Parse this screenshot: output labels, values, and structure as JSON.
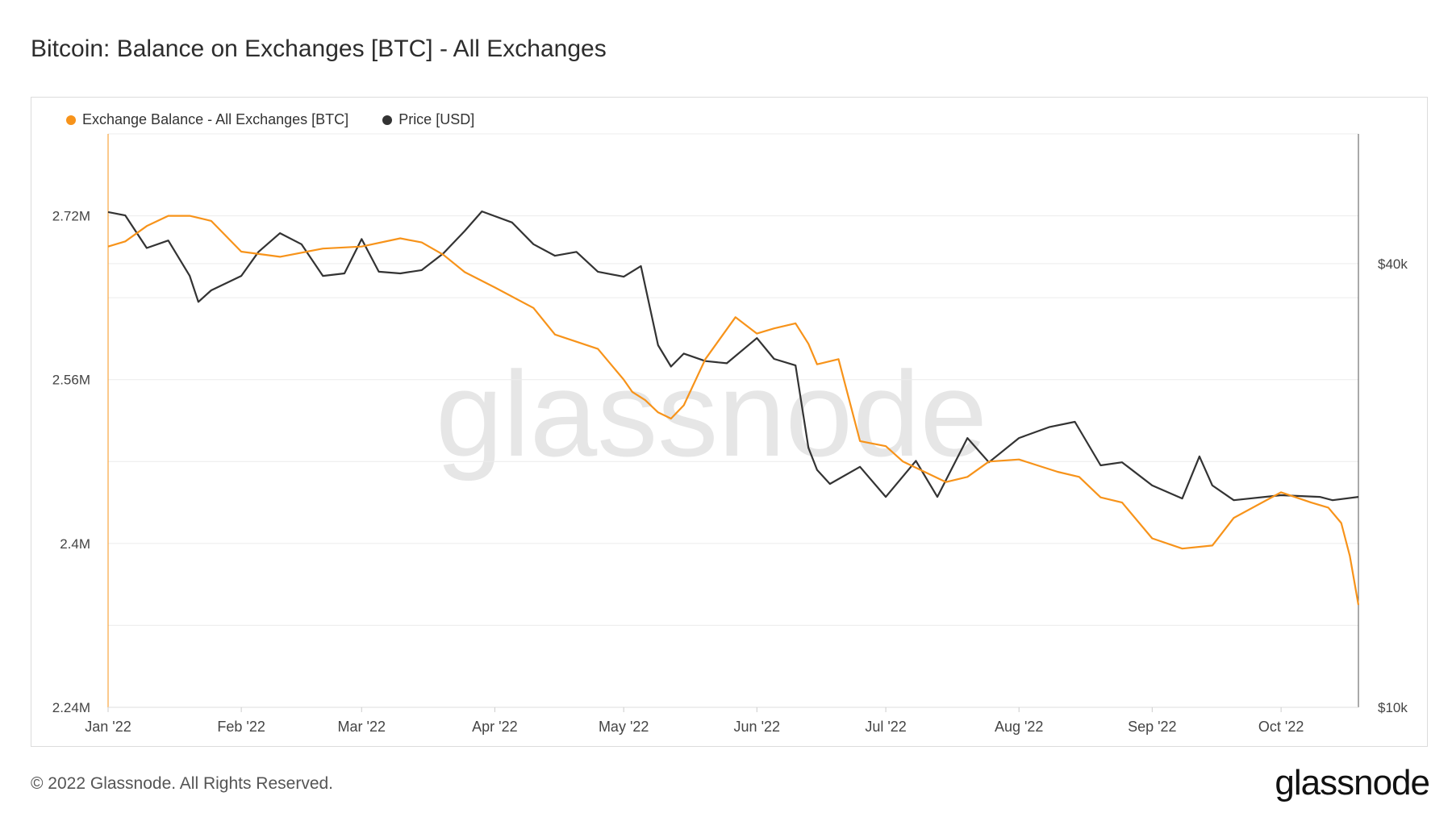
{
  "title": "Bitcoin: Balance on Exchanges [BTC] - All Exchanges",
  "footer": "© 2022 Glassnode. All Rights Reserved.",
  "brand": "glassnode",
  "watermark": "glassnode",
  "legend": [
    {
      "label": "Exchange Balance - All Exchanges [BTC]",
      "color": "#f7931a"
    },
    {
      "label": "Price [USD]",
      "color": "#333333"
    }
  ],
  "chart_data": {
    "type": "line",
    "x_ticks": [
      "Jan '22",
      "Feb '22",
      "Mar '22",
      "Apr '22",
      "May '22",
      "Jun '22",
      "Jul '22",
      "Aug '22",
      "Sep '22",
      "Oct '22"
    ],
    "left_axis": {
      "ticks": [
        "2.24M",
        "2.4M",
        "2.56M",
        "2.72M"
      ],
      "tick_values": [
        2240000,
        2400000,
        2560000,
        2720000
      ],
      "range": [
        2240000,
        2800000
      ]
    },
    "right_axis": {
      "ticks": [
        "$10k",
        "$40k"
      ],
      "tick_values": [
        10000,
        40000
      ],
      "scale": "log",
      "range": [
        10000,
        60000
      ]
    },
    "x_range": [
      "2022-01-01",
      "2022-10-19"
    ],
    "grid": true,
    "series": [
      {
        "name": "Exchange Balance - All Exchanges [BTC]",
        "axis": "left",
        "color": "#f7931a",
        "dates": [
          "2022-01-01",
          "2022-01-05",
          "2022-01-10",
          "2022-01-15",
          "2022-01-20",
          "2022-01-25",
          "2022-02-01",
          "2022-02-10",
          "2022-02-20",
          "2022-03-01",
          "2022-03-10",
          "2022-03-15",
          "2022-03-20",
          "2022-03-25",
          "2022-04-01",
          "2022-04-10",
          "2022-04-15",
          "2022-04-25",
          "2022-05-01",
          "2022-05-03",
          "2022-05-06",
          "2022-05-09",
          "2022-05-12",
          "2022-05-15",
          "2022-05-20",
          "2022-05-27",
          "2022-06-01",
          "2022-06-05",
          "2022-06-10",
          "2022-06-13",
          "2022-06-15",
          "2022-06-20",
          "2022-06-25",
          "2022-07-01",
          "2022-07-05",
          "2022-07-10",
          "2022-07-15",
          "2022-07-20",
          "2022-07-25",
          "2022-08-01",
          "2022-08-10",
          "2022-08-15",
          "2022-08-20",
          "2022-08-25",
          "2022-09-01",
          "2022-09-08",
          "2022-09-15",
          "2022-09-20",
          "2022-10-01",
          "2022-10-08",
          "2022-10-12",
          "2022-10-15",
          "2022-10-17",
          "2022-10-19"
        ],
        "values": [
          2690000,
          2695000,
          2710000,
          2720000,
          2720000,
          2715000,
          2685000,
          2680000,
          2688000,
          2690000,
          2698000,
          2694000,
          2682000,
          2665000,
          2650000,
          2630000,
          2604000,
          2590000,
          2560000,
          2548000,
          2540000,
          2528000,
          2522000,
          2535000,
          2580000,
          2621000,
          2605000,
          2610000,
          2615000,
          2595000,
          2575000,
          2580000,
          2500000,
          2495000,
          2480000,
          2470000,
          2460000,
          2465000,
          2480000,
          2482000,
          2470000,
          2465000,
          2445000,
          2440000,
          2405000,
          2395000,
          2398000,
          2425000,
          2450000,
          2440000,
          2435000,
          2420000,
          2388000,
          2340000
        ]
      },
      {
        "name": "Price [USD]",
        "axis": "right",
        "color": "#333333",
        "dates": [
          "2022-01-01",
          "2022-01-05",
          "2022-01-10",
          "2022-01-15",
          "2022-01-20",
          "2022-01-22",
          "2022-01-25",
          "2022-02-01",
          "2022-02-05",
          "2022-02-10",
          "2022-02-15",
          "2022-02-20",
          "2022-02-25",
          "2022-03-01",
          "2022-03-05",
          "2022-03-10",
          "2022-03-15",
          "2022-03-20",
          "2022-03-25",
          "2022-03-29",
          "2022-04-05",
          "2022-04-10",
          "2022-04-15",
          "2022-04-20",
          "2022-04-25",
          "2022-05-01",
          "2022-05-05",
          "2022-05-09",
          "2022-05-12",
          "2022-05-15",
          "2022-05-20",
          "2022-05-25",
          "2022-06-01",
          "2022-06-05",
          "2022-06-10",
          "2022-06-13",
          "2022-06-15",
          "2022-06-18",
          "2022-06-25",
          "2022-07-01",
          "2022-07-08",
          "2022-07-13",
          "2022-07-20",
          "2022-07-25",
          "2022-08-01",
          "2022-08-08",
          "2022-08-14",
          "2022-08-20",
          "2022-08-25",
          "2022-09-01",
          "2022-09-08",
          "2022-09-12",
          "2022-09-15",
          "2022-09-20",
          "2022-10-01",
          "2022-10-10",
          "2022-10-13",
          "2022-10-19"
        ],
        "values": [
          47000,
          46500,
          42000,
          43000,
          38500,
          35500,
          36800,
          38500,
          41500,
          44000,
          42500,
          38500,
          38800,
          43200,
          39000,
          38800,
          39200,
          41300,
          44300,
          47100,
          45500,
          42500,
          41000,
          41500,
          39000,
          38400,
          39700,
          31000,
          29000,
          30200,
          29500,
          29300,
          31700,
          29700,
          29100,
          22500,
          21000,
          20100,
          21200,
          19300,
          21600,
          19300,
          23200,
          21500,
          23200,
          24000,
          24400,
          21300,
          21500,
          20000,
          19200,
          21900,
          20000,
          19100,
          19400,
          19300,
          19100,
          19300
        ]
      }
    ]
  }
}
